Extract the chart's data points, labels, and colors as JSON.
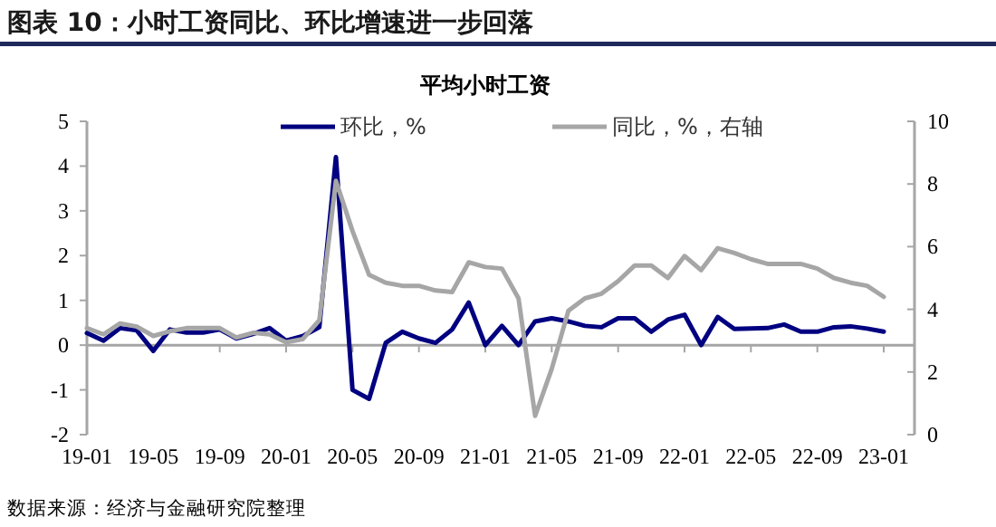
{
  "chart_data": {
    "type": "line",
    "title": "图表 10：小时工资同比、环比增速进一步回落",
    "subtitle": "平均小时工资",
    "categories": [
      "19-01",
      null,
      null,
      null,
      "19-05",
      null,
      null,
      null,
      "19-09",
      null,
      null,
      null,
      "20-01",
      null,
      null,
      null,
      "20-05",
      null,
      null,
      null,
      "20-09",
      null,
      null,
      null,
      "21-01",
      null,
      null,
      null,
      "21-05",
      null,
      null,
      null,
      "21-09",
      null,
      null,
      null,
      "22-01",
      null,
      null,
      null,
      "22-05",
      null,
      null,
      null,
      "22-09",
      null,
      null,
      null,
      "23-01"
    ],
    "series": [
      {
        "name": "环比，%",
        "color": "#000080",
        "values": [
          0.27,
          0.1,
          0.38,
          0.33,
          -0.13,
          0.35,
          0.28,
          0.28,
          0.35,
          0.15,
          0.25,
          0.38,
          0.1,
          0.2,
          0.4,
          4.2,
          -1.0,
          -1.2,
          0.05,
          0.3,
          0.15,
          0.05,
          0.35,
          0.95,
          0.0,
          0.43,
          0.0,
          0.53,
          0.6,
          0.53,
          0.43,
          0.4,
          0.6,
          0.6,
          0.3,
          0.57,
          0.68,
          0.0,
          0.63,
          0.36,
          0.37,
          0.38,
          0.46,
          0.3,
          0.3,
          0.4,
          0.42,
          0.37,
          0.3
        ]
      },
      {
        "name": "同比，%，右轴",
        "color": "#a6a6a6",
        "axis": "y2",
        "values": [
          3.4,
          3.2,
          3.55,
          3.45,
          3.15,
          3.3,
          3.4,
          3.4,
          3.4,
          3.1,
          3.25,
          3.2,
          2.95,
          3.05,
          3.65,
          8.1,
          6.5,
          5.1,
          4.85,
          4.75,
          4.75,
          4.6,
          4.55,
          5.5,
          5.35,
          5.3,
          4.35,
          0.6,
          2.1,
          3.95,
          4.35,
          4.5,
          4.9,
          5.4,
          5.4,
          5.0,
          5.7,
          5.25,
          5.95,
          5.8,
          5.6,
          5.45,
          5.45,
          5.45,
          5.3,
          5.0,
          4.85,
          4.75,
          4.4
        ]
      }
    ],
    "ylim": [
      -2,
      5
    ],
    "yticks": [
      -2,
      -1,
      0,
      1,
      2,
      3,
      4,
      5
    ],
    "y2lim": [
      0,
      10
    ],
    "y2ticks": [
      0,
      2,
      4,
      6,
      8,
      10
    ],
    "legend": "top",
    "annotations": [
      "数据来源：经济与金融研究院整理"
    ]
  }
}
